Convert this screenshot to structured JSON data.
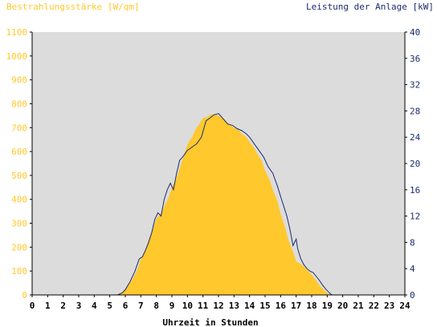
{
  "chart_data": {
    "type": "area",
    "title_left": "Bestrahlungsstärke [W/qm]",
    "title_right": "Leistung der Anlage [kW]",
    "xlabel": "Uhrzeit in Stunden",
    "x_ticks": [
      "0",
      "1",
      "2",
      "3",
      "4",
      "5",
      "6",
      "7",
      "8",
      "9",
      "10",
      "11",
      "12",
      "13",
      "14",
      "15",
      "16",
      "17",
      "18",
      "19",
      "20",
      "21",
      "22",
      "23",
      "24"
    ],
    "y_left_ticks": [
      "0",
      "100",
      "200",
      "300",
      "400",
      "500",
      "600",
      "700",
      "800",
      "900",
      "1000",
      "1100"
    ],
    "y_right_ticks": [
      "0",
      "4",
      "8",
      "12",
      "16",
      "20",
      "24",
      "28",
      "32",
      "36",
      "40"
    ],
    "xlim": [
      0,
      24
    ],
    "ylim_left": [
      0,
      1100
    ],
    "ylim_right": [
      0,
      40
    ],
    "colors": {
      "irradiance_fill": "#ffc82d",
      "power_line": "#1b2b72",
      "plot_background": "#dcdcdc",
      "left_axis_text": "#ffc82d",
      "right_axis_text": "#1b2b72"
    },
    "series": [
      {
        "key": "irradiance",
        "axis": "left",
        "x": [
          0,
          5.3,
          5.6,
          5.9,
          6.2,
          6.5,
          6.8,
          7.0,
          7.3,
          7.5,
          7.8,
          8.0,
          8.3,
          8.5,
          8.8,
          9.0,
          9.3,
          9.5,
          9.8,
          10.0,
          10.3,
          10.5,
          10.8,
          11.0,
          11.3,
          11.5,
          11.8,
          12.0,
          12.3,
          12.5,
          12.8,
          13.0,
          13.3,
          13.5,
          13.8,
          14.0,
          14.3,
          14.5,
          14.8,
          15.0,
          15.3,
          15.5,
          15.8,
          16.0,
          16.3,
          16.5,
          16.8,
          17.0,
          17.3,
          17.5,
          17.8,
          18.0,
          18.3,
          18.5,
          18.8,
          19.0,
          19.3,
          24
        ],
        "values": [
          0,
          0,
          5,
          15,
          40,
          70,
          110,
          150,
          190,
          230,
          280,
          320,
          340,
          370,
          410,
          450,
          490,
          530,
          590,
          630,
          660,
          690,
          720,
          740,
          745,
          755,
          755,
          750,
          740,
          725,
          710,
          700,
          690,
          675,
          660,
          640,
          615,
          590,
          560,
          520,
          480,
          440,
          390,
          340,
          280,
          230,
          180,
          140,
          130,
          120,
          100,
          85,
          60,
          40,
          20,
          8,
          0,
          0
        ]
      },
      {
        "key": "power",
        "axis": "right",
        "x": [
          0,
          5.5,
          5.8,
          6.0,
          6.3,
          6.6,
          6.9,
          7.1,
          7.3,
          7.5,
          7.7,
          7.9,
          8.1,
          8.3,
          8.5,
          8.7,
          8.9,
          9.1,
          9.3,
          9.5,
          9.7,
          10.0,
          10.3,
          10.6,
          10.9,
          11.2,
          11.5,
          11.7,
          12.0,
          12.3,
          12.6,
          12.9,
          13.2,
          13.5,
          13.8,
          14.0,
          14.3,
          14.6,
          14.9,
          15.2,
          15.5,
          15.8,
          16.0,
          16.2,
          16.4,
          16.6,
          16.8,
          17.0,
          17.1,
          17.3,
          17.5,
          17.7,
          17.9,
          18.1,
          18.3,
          18.5,
          18.7,
          18.9,
          19.1,
          19.3,
          24
        ],
        "values": [
          0,
          0,
          0.3,
          0.8,
          2.0,
          3.5,
          5.5,
          5.8,
          6.8,
          8.0,
          9.5,
          11.5,
          12.5,
          12.0,
          14.5,
          16.0,
          17.0,
          16.0,
          18.5,
          20.5,
          21.0,
          22.0,
          22.5,
          23.0,
          24.0,
          26.5,
          27.0,
          27.4,
          27.6,
          26.8,
          26.0,
          25.8,
          25.3,
          25.0,
          24.5,
          24.0,
          23.0,
          22.0,
          21.0,
          19.5,
          18.5,
          16.5,
          15.0,
          13.5,
          12.0,
          10.0,
          7.5,
          8.5,
          7.0,
          5.5,
          4.6,
          4.0,
          3.6,
          3.4,
          2.8,
          2.2,
          1.5,
          0.9,
          0.4,
          0,
          0
        ]
      }
    ],
    "grid": false
  }
}
